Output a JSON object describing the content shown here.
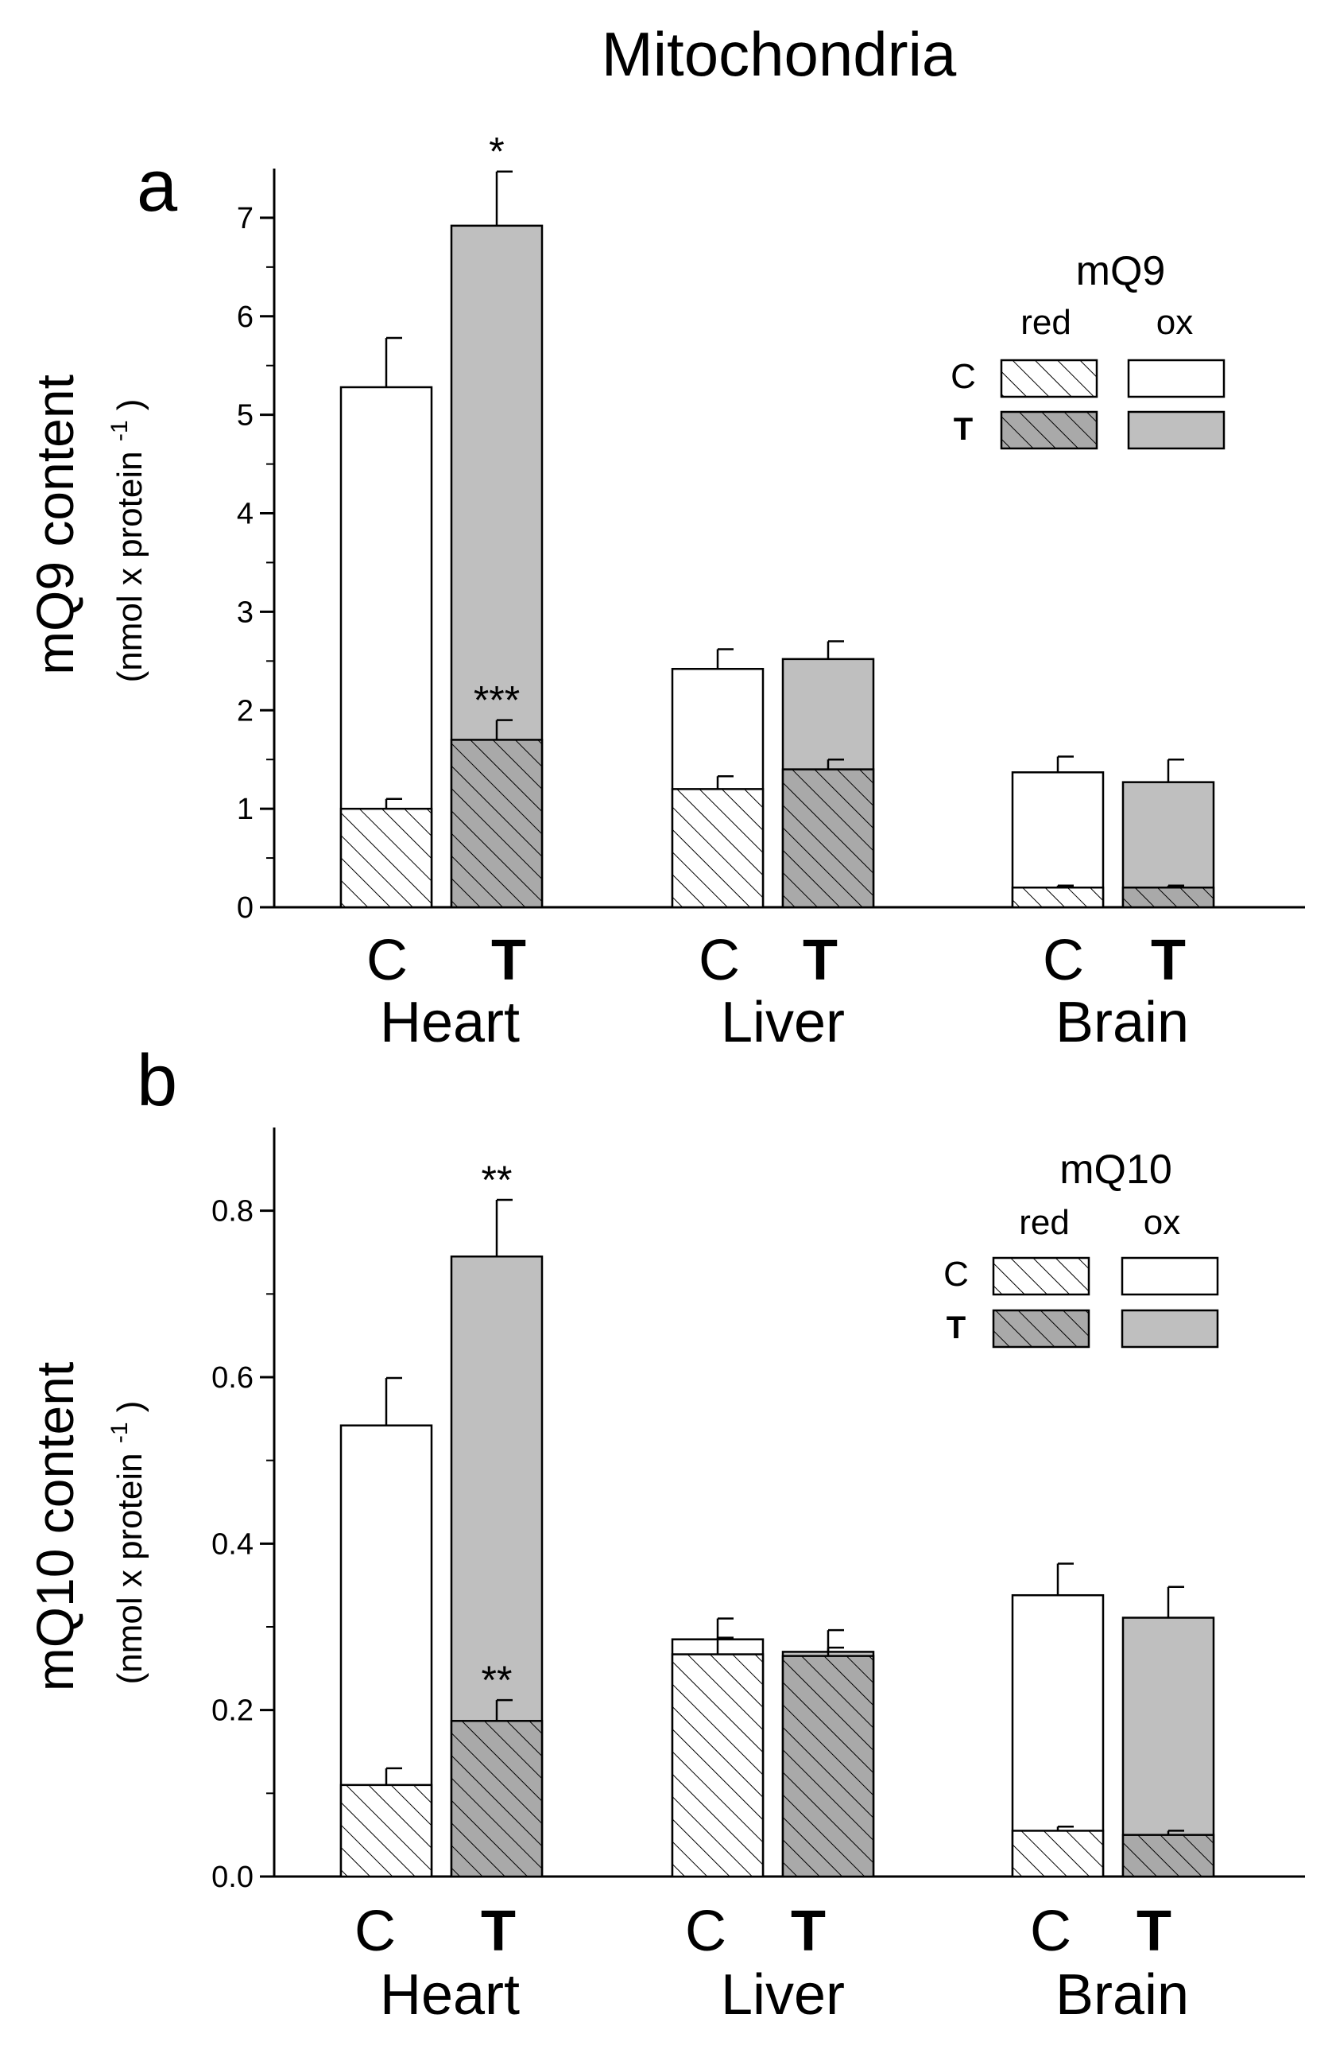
{
  "title": "Mitochondria",
  "colors": {
    "ox_control": "#ffffff",
    "ox_treated": "#bfbfbf",
    "red_control": "#ffffff",
    "red_treated": "#a9a9a9",
    "hatch": "#000000"
  },
  "chart_data": [
    {
      "panel": "a",
      "type": "bar",
      "stacked": true,
      "ylabel": "mQ9 content",
      "ylabel_units": "(nmol x protein",
      "ylabel_sup": "-1",
      "ylabel_close": ")",
      "ylim": [
        0,
        7.5
      ],
      "yticks": [
        0,
        1,
        2,
        3,
        4,
        5,
        6,
        7
      ],
      "ytick_labels": [
        "0",
        "1",
        "2",
        "3",
        "4",
        "5",
        "6",
        "7"
      ],
      "minor_ticks": [
        0.5,
        1.5,
        2.5,
        3.5,
        4.5,
        5.5,
        6.5
      ],
      "groups": [
        "Heart",
        "Liver",
        "Brain"
      ],
      "condition_labels": [
        "C",
        "T"
      ],
      "legend": {
        "title": "mQ9",
        "columns": [
          "red",
          "ox"
        ],
        "rows": [
          "C",
          "T"
        ]
      },
      "bars": [
        {
          "group": "Heart",
          "condition": "C",
          "red": 1.0,
          "red_err": 0.1,
          "total": 5.28,
          "total_err": 0.5,
          "red_sig": "",
          "total_sig": ""
        },
        {
          "group": "Heart",
          "condition": "T",
          "red": 1.7,
          "red_err": 0.2,
          "total": 6.92,
          "total_err": 0.55,
          "red_sig": "***",
          "total_sig": "*"
        },
        {
          "group": "Liver",
          "condition": "C",
          "red": 1.2,
          "red_err": 0.13,
          "total": 2.42,
          "total_err": 0.2,
          "red_sig": "",
          "total_sig": ""
        },
        {
          "group": "Liver",
          "condition": "T",
          "red": 1.4,
          "red_err": 0.1,
          "total": 2.52,
          "total_err": 0.18,
          "red_sig": "",
          "total_sig": ""
        },
        {
          "group": "Brain",
          "condition": "C",
          "red": 0.2,
          "red_err": 0.02,
          "total": 1.37,
          "total_err": 0.16,
          "red_sig": "",
          "total_sig": ""
        },
        {
          "group": "Brain",
          "condition": "T",
          "red": 0.2,
          "red_err": 0.02,
          "total": 1.27,
          "total_err": 0.23,
          "red_sig": "",
          "total_sig": ""
        }
      ]
    },
    {
      "panel": "b",
      "type": "bar",
      "stacked": true,
      "ylabel": "mQ10 content",
      "ylabel_units": "(nmol x protein",
      "ylabel_sup": "-1",
      "ylabel_close": ")",
      "ylim": [
        0,
        0.9
      ],
      "yticks": [
        0,
        0.2,
        0.4,
        0.6,
        0.8
      ],
      "ytick_labels": [
        "0.0",
        "0.2",
        "0.4",
        "0.6",
        "0.8"
      ],
      "minor_ticks": [
        0.1,
        0.3,
        0.5,
        0.7
      ],
      "groups": [
        "Heart",
        "Liver",
        "Brain"
      ],
      "condition_labels": [
        "C",
        "T"
      ],
      "legend": {
        "title": "mQ10",
        "columns": [
          "red",
          "ox"
        ],
        "rows": [
          "C",
          "T"
        ]
      },
      "bars": [
        {
          "group": "Heart",
          "condition": "C",
          "red": 0.11,
          "red_err": 0.02,
          "total": 0.542,
          "total_err": 0.057,
          "red_sig": "",
          "total_sig": ""
        },
        {
          "group": "Heart",
          "condition": "T",
          "red": 0.187,
          "red_err": 0.025,
          "total": 0.745,
          "total_err": 0.068,
          "red_sig": "**",
          "total_sig": "**"
        },
        {
          "group": "Liver",
          "condition": "C",
          "red": 0.267,
          "red_err": 0.02,
          "total": 0.285,
          "total_err": 0.025,
          "red_sig": "",
          "total_sig": ""
        },
        {
          "group": "Liver",
          "condition": "T",
          "red": 0.265,
          "red_err": 0.01,
          "total": 0.27,
          "total_err": 0.026,
          "red_sig": "",
          "total_sig": ""
        },
        {
          "group": "Brain",
          "condition": "C",
          "red": 0.055,
          "red_err": 0.005,
          "total": 0.338,
          "total_err": 0.038,
          "red_sig": "",
          "total_sig": ""
        },
        {
          "group": "Brain",
          "condition": "T",
          "red": 0.05,
          "red_err": 0.005,
          "total": 0.311,
          "total_err": 0.037,
          "red_sig": "",
          "total_sig": ""
        }
      ]
    }
  ]
}
